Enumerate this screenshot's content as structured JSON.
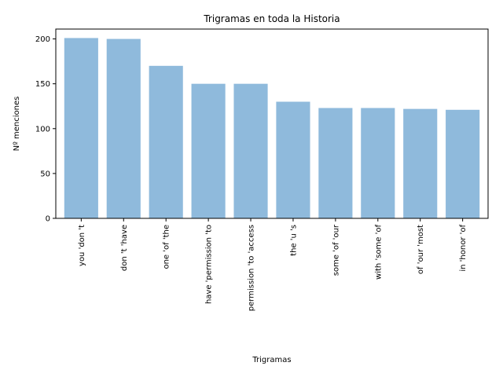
{
  "chart_data": {
    "type": "bar",
    "title": "Trigramas en toda la Historia",
    "xlabel": "Trigramas",
    "ylabel": "Nº menciones",
    "categories": [
      "you 'don 't",
      "don 't 'have",
      "one 'of 'the",
      "have 'permission 'to",
      "permission 'to 'access",
      "the 'u 's",
      "some 'of 'our",
      "with 'some 'of",
      "of 'our 'most",
      "in 'honor 'of"
    ],
    "values": [
      201,
      200,
      170,
      150,
      150,
      130,
      123,
      123,
      122,
      121
    ],
    "ylim": [
      0,
      211
    ],
    "yticks": [
      0,
      50,
      100,
      150,
      200
    ],
    "bar_color": "#8fbadc",
    "grid": false,
    "legend": "none"
  }
}
